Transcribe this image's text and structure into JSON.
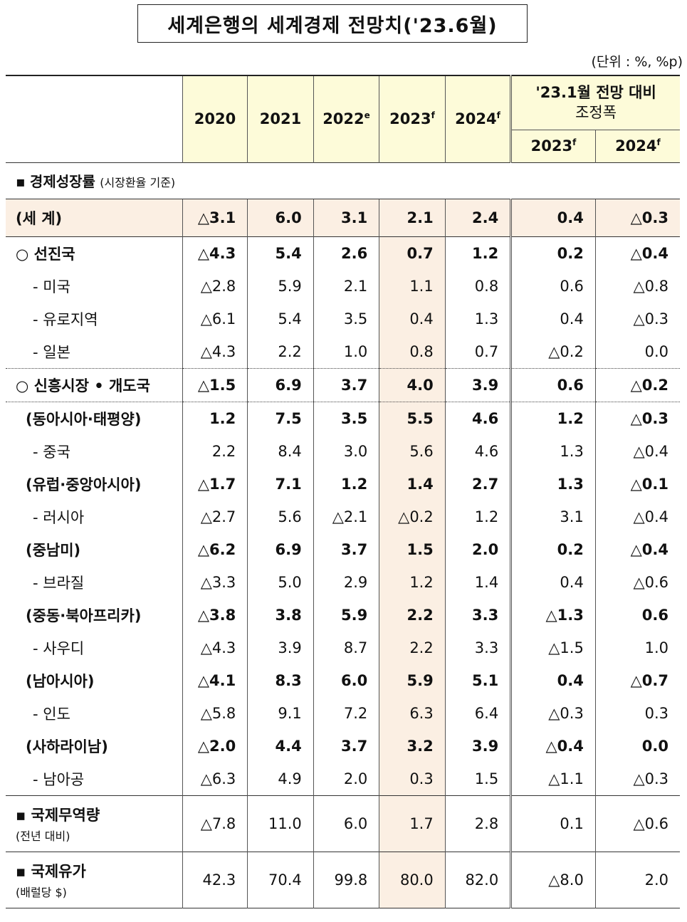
{
  "title": "세계은행의 세계경제 전망치('23.6월)",
  "unit": "(단위 : %, %p)",
  "header": {
    "years": [
      "2020",
      "2021",
      "2022",
      "2023",
      "2024"
    ],
    "year_sup": [
      "",
      "",
      "e",
      "f",
      "f"
    ],
    "adjust_title_line1": "'23.1월 전망 대비",
    "adjust_title_line2": "조정폭",
    "adjust_years": [
      "2023",
      "2024"
    ],
    "adjust_sup": [
      "f",
      "f"
    ]
  },
  "section_gdp": {
    "label": "경제성장률",
    "note": "(시장환율 기준)"
  },
  "rows": [
    {
      "name": "(세   계)",
      "v": [
        "△3.1",
        "6.0",
        "3.1",
        "2.1",
        "2.4",
        "0.4",
        "△0.3"
      ]
    },
    {
      "name": "○  선진국",
      "v": [
        "△4.3",
        "5.4",
        "2.6",
        "0.7",
        "1.2",
        "0.2",
        "△0.4"
      ]
    },
    {
      "name": "-  미국",
      "v": [
        "△2.8",
        "5.9",
        "2.1",
        "1.1",
        "0.8",
        "0.6",
        "△0.8"
      ]
    },
    {
      "name": "-  유로지역",
      "v": [
        "△6.1",
        "5.4",
        "3.5",
        "0.4",
        "1.3",
        "0.4",
        "△0.3"
      ]
    },
    {
      "name": "-  일본",
      "v": [
        "△4.3",
        "2.2",
        "1.0",
        "0.8",
        "0.7",
        "△0.2",
        "0.0"
      ]
    },
    {
      "name": "○  신흥시장 • 개도국",
      "v": [
        "△1.5",
        "6.9",
        "3.7",
        "4.0",
        "3.9",
        "0.6",
        "△0.2"
      ]
    },
    {
      "name": "(동아시아·태평양)",
      "v": [
        "1.2",
        "7.5",
        "3.5",
        "5.5",
        "4.6",
        "1.2",
        "△0.3"
      ]
    },
    {
      "name": "-  중국",
      "v": [
        "2.2",
        "8.4",
        "3.0",
        "5.6",
        "4.6",
        "1.3",
        "△0.4"
      ]
    },
    {
      "name": "(유럽·중앙아시아)",
      "v": [
        "△1.7",
        "7.1",
        "1.2",
        "1.4",
        "2.7",
        "1.3",
        "△0.1"
      ]
    },
    {
      "name": "-  러시아",
      "v": [
        "△2.7",
        "5.6",
        "△2.1",
        "△0.2",
        "1.2",
        "3.1",
        "△0.4"
      ]
    },
    {
      "name": "(중남미)",
      "v": [
        "△6.2",
        "6.9",
        "3.7",
        "1.5",
        "2.0",
        "0.2",
        "△0.4"
      ]
    },
    {
      "name": "-  브라질",
      "v": [
        "△3.3",
        "5.0",
        "2.9",
        "1.2",
        "1.4",
        "0.4",
        "△0.6"
      ]
    },
    {
      "name": "(중동·북아프리카)",
      "v": [
        "△3.8",
        "3.8",
        "5.9",
        "2.2",
        "3.3",
        "△1.3",
        "0.6"
      ]
    },
    {
      "name": "-  사우디",
      "v": [
        "△4.3",
        "3.9",
        "8.7",
        "2.2",
        "3.3",
        "△1.5",
        "1.0"
      ]
    },
    {
      "name": "(남아시아)",
      "v": [
        "△4.1",
        "8.3",
        "6.0",
        "5.9",
        "5.1",
        "0.4",
        "△0.7"
      ]
    },
    {
      "name": "-  인도",
      "v": [
        "△5.8",
        "9.1",
        "7.2",
        "6.3",
        "6.4",
        "△0.3",
        "0.3"
      ]
    },
    {
      "name": "(사하라이남)",
      "v": [
        "△2.0",
        "4.4",
        "3.7",
        "3.2",
        "3.9",
        "△0.4",
        "0.0"
      ]
    },
    {
      "name": "-  남아공",
      "v": [
        "△6.3",
        "4.9",
        "2.0",
        "0.3",
        "1.5",
        "△1.1",
        "△0.3"
      ]
    }
  ],
  "trade": {
    "label": "국제무역량",
    "note": "(전년 대비)",
    "v": [
      "△7.8",
      "11.0",
      "6.0",
      "1.7",
      "2.8",
      "0.1",
      "△0.6"
    ]
  },
  "oil": {
    "label": "국제유가",
    "note": "(배럴당 $)",
    "v": [
      "42.3",
      "70.4",
      "99.8",
      "80.0",
      "82.0",
      "△8.0",
      "2.0"
    ]
  },
  "colors": {
    "header_bg": "#fdfbd9",
    "highlight_bg": "#fbefe3"
  }
}
